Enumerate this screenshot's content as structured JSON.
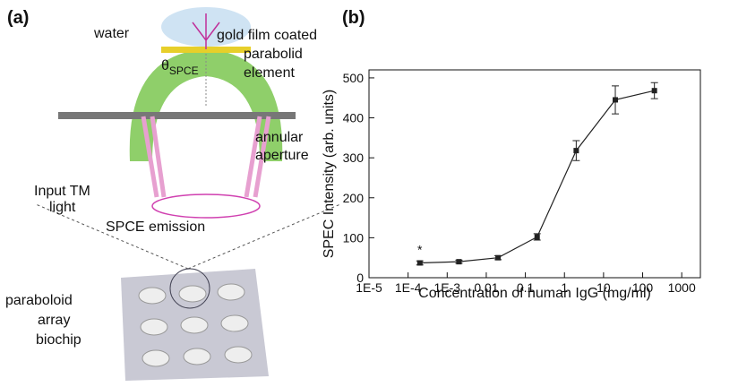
{
  "panel_a": {
    "label": "(a)",
    "water": "water",
    "film": [
      "gold film coated",
      "parabolid",
      "element"
    ],
    "theta": "θ",
    "theta_sub": "SPCE",
    "aperture": [
      "annular",
      "aperture"
    ],
    "input": [
      "Input TM",
      "light"
    ],
    "emission": "SPCE emission",
    "chip": [
      "paraboloid",
      "array",
      "biochip"
    ]
  },
  "panel_b": {
    "label": "(b)"
  },
  "chart_data": {
    "type": "scatter-line",
    "xlabel": "Concentration of human IgG (mg/ml)",
    "ylabel": "SPEC Intensity (arb. units)",
    "annotation": "*",
    "x": [
      0.0002,
      0.002,
      0.02,
      0.2,
      2,
      20,
      200
    ],
    "values": [
      37,
      40,
      50,
      102,
      318,
      445,
      468
    ],
    "errors": [
      5,
      4,
      5,
      8,
      25,
      35,
      20
    ],
    "color": "#222222",
    "xscale": "log",
    "xlim": [
      1e-05,
      3000
    ],
    "xticks": [
      {
        "value": 1e-05,
        "label": "1E-5"
      },
      {
        "value": 0.0001,
        "label": "1E-4"
      },
      {
        "value": 0.001,
        "label": "1E-3"
      },
      0.01,
      0.1,
      1,
      10,
      100,
      1000
    ],
    "ylim": [
      0,
      520
    ],
    "yticks": [
      0,
      100,
      200,
      300,
      400,
      500
    ]
  }
}
